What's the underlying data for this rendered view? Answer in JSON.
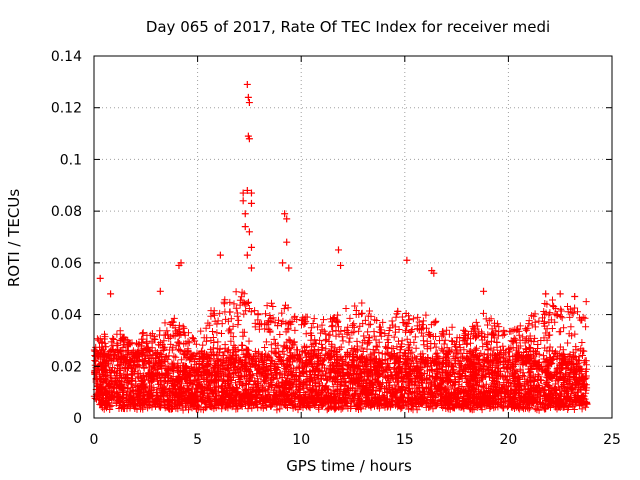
{
  "chart_data": {
    "type": "scatter",
    "title": "Day 065 of 2017, Rate Of TEC Index for receiver medi",
    "xlabel": "GPS time / hours",
    "ylabel": "ROTI / TECUs",
    "xlim": [
      0,
      25
    ],
    "ylim": [
      0,
      0.14
    ],
    "x_ticks": [
      0,
      5,
      10,
      15,
      20,
      25
    ],
    "x_tick_labels": [
      "0",
      "5",
      "10",
      "15",
      "20",
      "25"
    ],
    "y_ticks": [
      0,
      0.02,
      0.04,
      0.06,
      0.08,
      0.1,
      0.12,
      0.14
    ],
    "y_tick_labels": [
      "0",
      "0.02",
      "0.04",
      "0.06",
      "0.08",
      "0.1",
      "0.12",
      "0.14"
    ],
    "grid": true,
    "marker": "+",
    "color": "#ff0000",
    "data_x_range": [
      0,
      23.8
    ],
    "envelope": {
      "hours": [
        0,
        1,
        2,
        3,
        4,
        5,
        6,
        7,
        8,
        9,
        10,
        11,
        12,
        13,
        14,
        15,
        16,
        17,
        18,
        19,
        20,
        21,
        22,
        23,
        23.8
      ],
      "upper": [
        0.03,
        0.033,
        0.03,
        0.034,
        0.038,
        0.03,
        0.045,
        0.048,
        0.042,
        0.043,
        0.038,
        0.04,
        0.04,
        0.043,
        0.04,
        0.042,
        0.04,
        0.033,
        0.035,
        0.04,
        0.033,
        0.038,
        0.045,
        0.043,
        0.043
      ]
    },
    "peaks": [
      {
        "x": 0.3,
        "y": 0.054
      },
      {
        "x": 0.8,
        "y": 0.048
      },
      {
        "x": 3.2,
        "y": 0.049
      },
      {
        "x": 4.1,
        "y": 0.059
      },
      {
        "x": 4.2,
        "y": 0.06
      },
      {
        "x": 6.1,
        "y": 0.063
      },
      {
        "x": 7.2,
        "y": 0.087
      },
      {
        "x": 7.2,
        "y": 0.084
      },
      {
        "x": 7.3,
        "y": 0.079
      },
      {
        "x": 7.4,
        "y": 0.129
      },
      {
        "x": 7.45,
        "y": 0.124
      },
      {
        "x": 7.5,
        "y": 0.122
      },
      {
        "x": 7.45,
        "y": 0.109
      },
      {
        "x": 7.5,
        "y": 0.108
      },
      {
        "x": 7.4,
        "y": 0.088
      },
      {
        "x": 7.6,
        "y": 0.087
      },
      {
        "x": 7.6,
        "y": 0.083
      },
      {
        "x": 7.3,
        "y": 0.074
      },
      {
        "x": 7.5,
        "y": 0.072
      },
      {
        "x": 7.6,
        "y": 0.066
      },
      {
        "x": 7.4,
        "y": 0.063
      },
      {
        "x": 7.6,
        "y": 0.058
      },
      {
        "x": 9.2,
        "y": 0.079
      },
      {
        "x": 9.3,
        "y": 0.077
      },
      {
        "x": 9.3,
        "y": 0.068
      },
      {
        "x": 9.1,
        "y": 0.06
      },
      {
        "x": 9.4,
        "y": 0.058
      },
      {
        "x": 11.8,
        "y": 0.065
      },
      {
        "x": 11.9,
        "y": 0.059
      },
      {
        "x": 15.1,
        "y": 0.061
      },
      {
        "x": 16.3,
        "y": 0.057
      },
      {
        "x": 16.4,
        "y": 0.056
      },
      {
        "x": 18.8,
        "y": 0.049
      },
      {
        "x": 21.8,
        "y": 0.048
      },
      {
        "x": 22.5,
        "y": 0.048
      },
      {
        "x": 23.2,
        "y": 0.047
      }
    ]
  }
}
